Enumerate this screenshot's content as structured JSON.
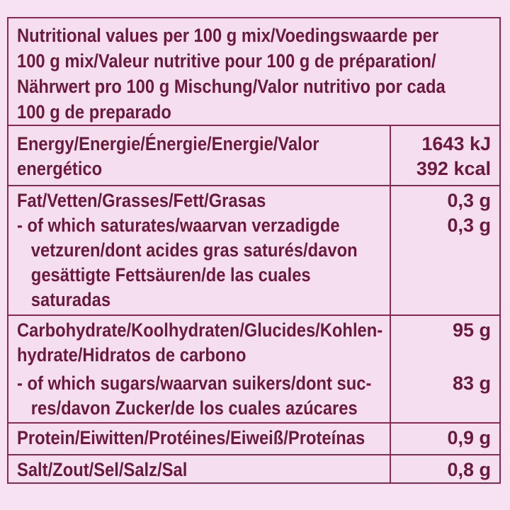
{
  "colors": {
    "page_bg": "#f6e2f1",
    "cell_bg": "#f5dfee",
    "text": "#6b1a3c",
    "border": "#862a50"
  },
  "header": {
    "text": "Nutritional values per 100 g mix/Voedingswaarde per\n100 g mix/Valeur nutritive pour 100 g de préparation/\nNährwert pro 100 g Mischung/Valor nutritivo por cada\n100 g de preparado"
  },
  "rows": [
    {
      "id": "energy",
      "label": "Energy/Energie/Énergie/Energie/Valor\nenergético",
      "value": "1643 kJ\n392 kcal"
    },
    {
      "id": "fat",
      "label": "Fat/Vetten/Grasses/Fett/Grasas",
      "value": "0,3 g",
      "sub": {
        "label": "- of which saturates/waarvan verzadigde\n   vetzuren/dont acides gras saturés/davon\n   gesättigte Fettsäuren/de las cuales\n   saturadas",
        "value": "0,3 g"
      }
    },
    {
      "id": "carbohydrate",
      "label": "Carbohydrate/Koolhydraten/Glucides/Kohlen-\nhydrate/Hidratos de carbono",
      "value": "95 g",
      "sub": {
        "label": "- of which sugars/waarvan suikers/dont suc-\n   res/davon Zucker/de los cuales azúcares",
        "value": "83 g"
      }
    },
    {
      "id": "protein",
      "label": "Protein/Eiwitten/Protéines/Eiweiß/Proteínas",
      "value": "0,9 g"
    },
    {
      "id": "salt",
      "label": "Salt/Zout/Sel/Salz/Sal",
      "value": "0,8 g"
    }
  ]
}
